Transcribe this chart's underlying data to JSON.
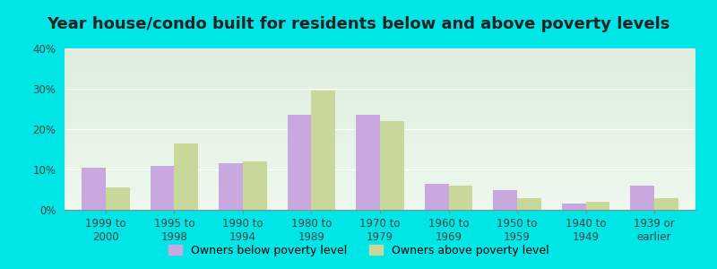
{
  "title": "Year house/condo built for residents below and above poverty levels",
  "categories": [
    "1999 to\n2000",
    "1995 to\n1998",
    "1990 to\n1994",
    "1980 to\n1989",
    "1970 to\n1979",
    "1960 to\n1969",
    "1950 to\n1959",
    "1940 to\n1949",
    "1939 or\nearlier"
  ],
  "below_poverty": [
    10.5,
    11.0,
    11.5,
    23.5,
    23.5,
    6.5,
    5.0,
    1.5,
    6.0
  ],
  "above_poverty": [
    5.5,
    16.5,
    12.0,
    29.5,
    22.0,
    6.0,
    3.0,
    2.0,
    3.0
  ],
  "below_color": "#c9a8e0",
  "above_color": "#c8d89a",
  "background_outer": "#00e5e5",
  "background_plot_top": "#ddeedd",
  "background_plot_bottom": "#eef8ee",
  "ylim": [
    0,
    40
  ],
  "yticks": [
    0,
    10,
    20,
    30,
    40
  ],
  "ytick_labels": [
    "0%",
    "10%",
    "20%",
    "30%",
    "40%"
  ],
  "legend_below": "Owners below poverty level",
  "legend_above": "Owners above poverty level",
  "title_fontsize": 13,
  "tick_fontsize": 8.5,
  "legend_fontsize": 9,
  "bar_width": 0.35
}
